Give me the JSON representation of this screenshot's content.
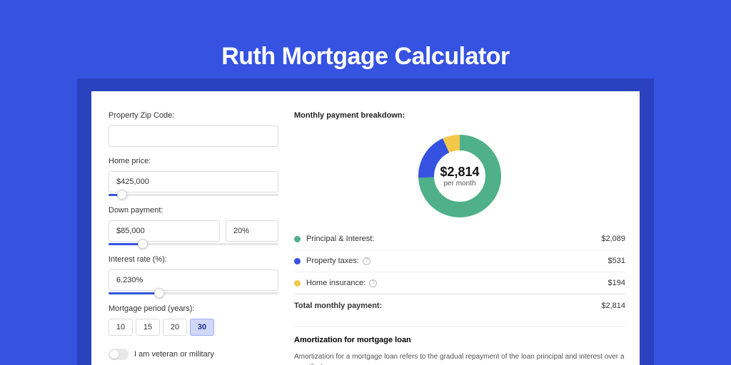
{
  "colors": {
    "page_bg": "#3652E1",
    "shadow_band": "#2a42be",
    "card_bg": "#ffffff",
    "primary": "#3652E1",
    "slice_principal": "#4fb08a",
    "slice_taxes": "#3652E1",
    "slice_insurance": "#f3c94b",
    "text": "#333333",
    "border": "#dcdcdc"
  },
  "title": "Ruth Mortgage Calculator",
  "form": {
    "zip": {
      "label": "Property Zip Code:",
      "value": ""
    },
    "home_price": {
      "label": "Home price:",
      "value": "$425,000",
      "slider_pct": 8
    },
    "down_payment": {
      "label": "Down payment:",
      "value": "$85,000",
      "pct": "20%",
      "slider_pct": 20
    },
    "interest_rate": {
      "label": "Interest rate (%):",
      "value": "6.230%",
      "slider_pct": 30
    },
    "period": {
      "label": "Mortgage period (years):",
      "options": [
        "10",
        "15",
        "20",
        "30"
      ],
      "selected": "30"
    },
    "veteran": {
      "label": "I am veteran or military",
      "on": false
    }
  },
  "breakdown": {
    "heading": "Monthly payment breakdown:",
    "total": "$2,814",
    "total_sub": "per month",
    "donut": {
      "size": 130,
      "stroke_width": 22,
      "slices": [
        {
          "key": "principal",
          "pct": 74.2,
          "color": "#4fb08a"
        },
        {
          "key": "taxes",
          "pct": 18.9,
          "color": "#3652E1"
        },
        {
          "key": "insurance",
          "pct": 6.9,
          "color": "#f3c94b"
        }
      ]
    },
    "rows": [
      {
        "key": "principal",
        "label": "Principal & Interest:",
        "value": "$2,089",
        "color": "#4fb08a",
        "info": false
      },
      {
        "key": "taxes",
        "label": "Property taxes:",
        "value": "$531",
        "color": "#3652E1",
        "info": true
      },
      {
        "key": "insurance",
        "label": "Home insurance:",
        "value": "$194",
        "color": "#f3c94b",
        "info": true
      }
    ],
    "total_row": {
      "label": "Total monthly payment:",
      "value": "$2,814"
    }
  },
  "amortization": {
    "heading": "Amortization for mortgage loan",
    "text": "Amortization for a mortgage loan refers to the gradual repayment of the loan principal and interest over a specified"
  }
}
